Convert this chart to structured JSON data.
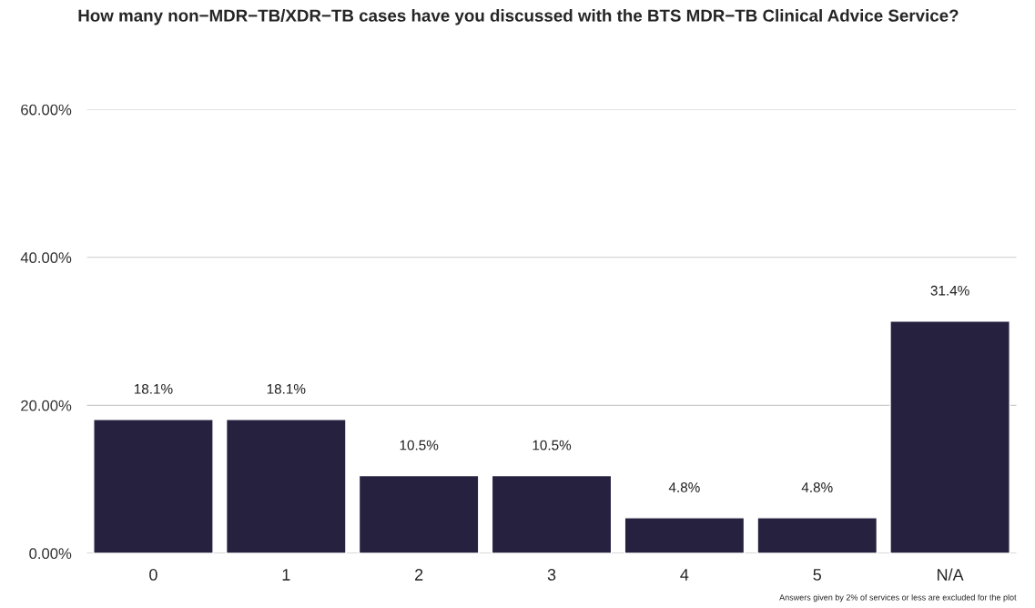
{
  "chart_data": {
    "type": "bar",
    "title": "How many non−MDR−TB/XDR−TB cases have you discussed with the BTS MDR−TB Clinical Advice Service?",
    "categories": [
      "0",
      "1",
      "2",
      "3",
      "4",
      "5",
      "N/A"
    ],
    "values": [
      18.1,
      18.1,
      10.5,
      10.5,
      4.8,
      4.8,
      31.4
    ],
    "value_labels": [
      "18.1%",
      "18.1%",
      "10.5%",
      "10.5%",
      "4.8%",
      "4.8%",
      "31.4%"
    ],
    "color": "#25213f",
    "ylim": [
      0,
      60
    ],
    "yticks": [
      {
        "value": 0,
        "label": "0.00%"
      },
      {
        "value": 20,
        "label": "20.00%"
      },
      {
        "value": 40,
        "label": "40.00%"
      },
      {
        "value": 60,
        "label": "60.00%"
      }
    ],
    "grid": "y",
    "annotations": [
      "Answers given by 2% of services or less are excluded for the plot"
    ]
  }
}
